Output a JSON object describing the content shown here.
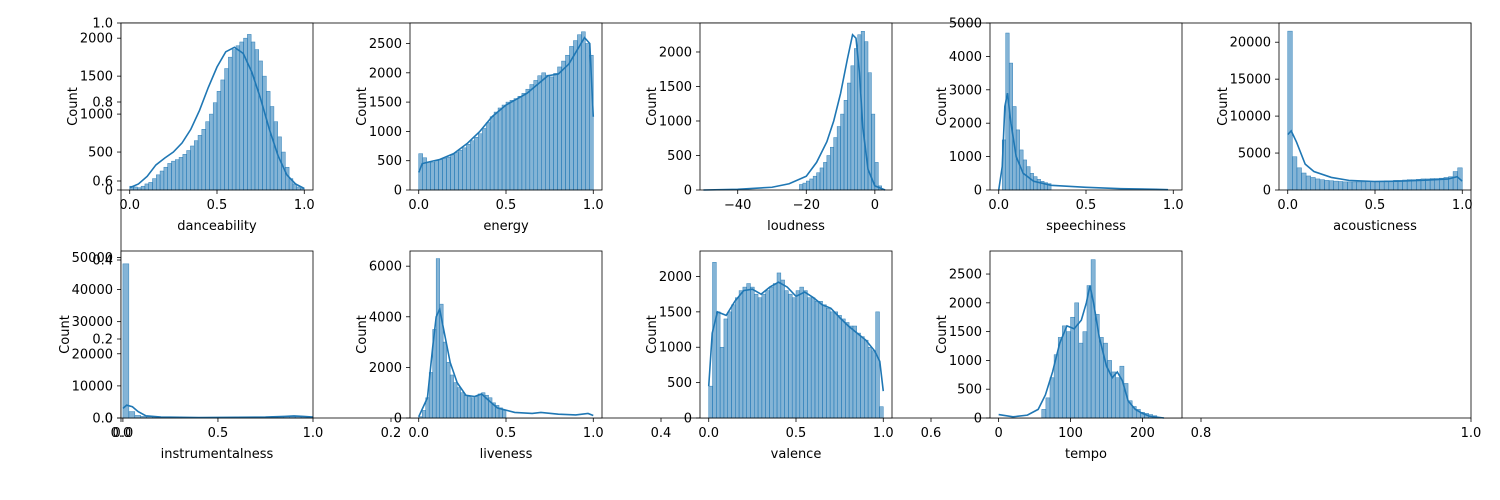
{
  "chart_data": [
    {
      "type": "bar",
      "xlabel": "danceability",
      "ylabel": "Count",
      "xlim": [
        -0.05,
        1.05
      ],
      "ylim": [
        0,
        2200
      ],
      "xticks": [
        "0.0",
        "0.5",
        "1.0"
      ],
      "xtick_values": [
        0.0,
        0.5,
        1.0
      ],
      "yticks": [
        "0",
        "500",
        "1000",
        "1500",
        "2000"
      ],
      "ytick_values": [
        0,
        500,
        1000,
        1500,
        2000
      ],
      "hist": {
        "x_start": 0.0,
        "x_end": 1.0,
        "values": [
          50,
          40,
          30,
          50,
          80,
          100,
          150,
          200,
          250,
          300,
          350,
          380,
          400,
          430,
          470,
          520,
          580,
          650,
          720,
          800,
          900,
          1000,
          1150,
          1300,
          1450,
          1600,
          1750,
          1850,
          1900,
          1950,
          2000,
          2050,
          1950,
          1850,
          1700,
          1500,
          1300,
          1100,
          900,
          700,
          500,
          300,
          150,
          80,
          40,
          20
        ]
      },
      "kde": [
        [
          0.0,
          30
        ],
        [
          0.05,
          80
        ],
        [
          0.1,
          180
        ],
        [
          0.15,
          330
        ],
        [
          0.2,
          420
        ],
        [
          0.25,
          500
        ],
        [
          0.3,
          620
        ],
        [
          0.35,
          800
        ],
        [
          0.4,
          1050
        ],
        [
          0.45,
          1350
        ],
        [
          0.5,
          1620
        ],
        [
          0.55,
          1820
        ],
        [
          0.6,
          1880
        ],
        [
          0.65,
          1800
        ],
        [
          0.7,
          1550
        ],
        [
          0.75,
          1200
        ],
        [
          0.8,
          800
        ],
        [
          0.85,
          450
        ],
        [
          0.9,
          200
        ],
        [
          0.95,
          80
        ],
        [
          1.0,
          20
        ]
      ],
      "series_color": "#1f77b4"
    },
    {
      "type": "bar",
      "xlabel": "energy",
      "ylabel": "Count",
      "xlim": [
        -0.05,
        1.05
      ],
      "ylim": [
        0,
        2850
      ],
      "xticks": [
        "0.0",
        "0.5",
        "1.0"
      ],
      "xtick_values": [
        0.0,
        0.5,
        1.0
      ],
      "yticks": [
        "0",
        "500",
        "1000",
        "1500",
        "2000",
        "2500"
      ],
      "ytick_values": [
        0,
        500,
        1000,
        1500,
        2000,
        2500
      ],
      "hist": {
        "x_start": 0.0,
        "x_end": 1.0,
        "values": [
          620,
          550,
          480,
          470,
          500,
          520,
          540,
          560,
          600,
          640,
          680,
          720,
          780,
          840,
          900,
          960,
          1050,
          1150,
          1250,
          1330,
          1400,
          1450,
          1500,
          1530,
          1560,
          1600,
          1650,
          1720,
          1800,
          1870,
          1950,
          2000,
          1960,
          1930,
          1990,
          2100,
          2200,
          2300,
          2450,
          2550,
          2650,
          2700,
          2500,
          2300
        ]
      },
      "kde": [
        [
          0.0,
          300
        ],
        [
          0.02,
          450
        ],
        [
          0.06,
          480
        ],
        [
          0.12,
          520
        ],
        [
          0.2,
          620
        ],
        [
          0.28,
          800
        ],
        [
          0.35,
          1000
        ],
        [
          0.42,
          1250
        ],
        [
          0.5,
          1450
        ],
        [
          0.56,
          1550
        ],
        [
          0.62,
          1650
        ],
        [
          0.68,
          1800
        ],
        [
          0.74,
          1950
        ],
        [
          0.8,
          1980
        ],
        [
          0.86,
          2150
        ],
        [
          0.9,
          2350
        ],
        [
          0.95,
          2600
        ],
        [
          0.98,
          2500
        ],
        [
          1.0,
          1250
        ]
      ],
      "series_color": "#1f77b4"
    },
    {
      "type": "bar",
      "xlabel": "loudness",
      "ylabel": "Count",
      "xlim": [
        -51,
        5
      ],
      "ylim": [
        0,
        2420
      ],
      "xticks": [
        "−40",
        "−20",
        "0"
      ],
      "xtick_values": [
        -40,
        -20,
        0
      ],
      "yticks": [
        "0",
        "500",
        "1000",
        "1500",
        "2000"
      ],
      "ytick_values": [
        0,
        500,
        1000,
        1500,
        2000
      ],
      "hist": {
        "x_start": -22,
        "x_end": 2,
        "values": [
          80,
          100,
          130,
          160,
          200,
          250,
          320,
          400,
          500,
          620,
          760,
          920,
          1100,
          1300,
          1550,
          1800,
          2050,
          2250,
          2300,
          2150,
          1700,
          1100,
          400,
          60
        ]
      },
      "kde": [
        [
          -50,
          0
        ],
        [
          -40,
          10
        ],
        [
          -30,
          40
        ],
        [
          -25,
          90
        ],
        [
          -20,
          200
        ],
        [
          -17,
          400
        ],
        [
          -14,
          700
        ],
        [
          -12,
          1000
        ],
        [
          -10,
          1400
        ],
        [
          -8,
          1900
        ],
        [
          -6.5,
          2250
        ],
        [
          -5.5,
          2200
        ],
        [
          -4.5,
          1700
        ],
        [
          -3.5,
          900
        ],
        [
          -2,
          300
        ],
        [
          0,
          60
        ],
        [
          3,
          0
        ]
      ],
      "series_color": "#1f77b4"
    },
    {
      "type": "bar",
      "xlabel": "speechiness",
      "ylabel": "Count",
      "xlim": [
        -0.05,
        1.05
      ],
      "ylim": [
        0,
        5000
      ],
      "xticks": [
        "0.0",
        "0.5",
        "1.0"
      ],
      "xtick_values": [
        0.0,
        0.5,
        1.0
      ],
      "yticks": [
        "0",
        "1000",
        "2000",
        "3000",
        "4000",
        "5000"
      ],
      "ytick_values": [
        0,
        1000,
        2000,
        3000,
        4000,
        5000
      ],
      "hist": {
        "x_start": 0.02,
        "x_end": 0.3,
        "values": [
          1500,
          4700,
          3800,
          2500,
          1800,
          1200,
          900,
          700,
          500,
          400,
          320,
          260,
          220,
          190
        ]
      },
      "kde": [
        [
          0.0,
          0
        ],
        [
          0.02,
          700
        ],
        [
          0.035,
          2500
        ],
        [
          0.05,
          2900
        ],
        [
          0.07,
          2000
        ],
        [
          0.1,
          1000
        ],
        [
          0.14,
          500
        ],
        [
          0.2,
          260
        ],
        [
          0.3,
          140
        ],
        [
          0.5,
          80
        ],
        [
          0.7,
          40
        ],
        [
          0.9,
          20
        ],
        [
          0.97,
          10
        ]
      ],
      "series_color": "#1f77b4"
    },
    {
      "type": "bar",
      "xlabel": "acousticness",
      "ylabel": "Count",
      "xlim": [
        -0.05,
        1.05
      ],
      "ylim": [
        0,
        22600
      ],
      "xticks": [
        "0.0",
        "0.5",
        "1.0"
      ],
      "xtick_values": [
        0.0,
        0.5,
        1.0
      ],
      "yticks": [
        "0",
        "5000",
        "10000",
        "15000",
        "20000"
      ],
      "ytick_values": [
        0,
        5000,
        10000,
        15000,
        20000
      ],
      "hist": {
        "x_start": 0.0,
        "x_end": 1.0,
        "values": [
          21500,
          4500,
          3000,
          2300,
          1900,
          1700,
          1500,
          1400,
          1300,
          1250,
          1200,
          1150,
          1100,
          1100,
          1100,
          1100,
          1100,
          1150,
          1150,
          1200,
          1200,
          1250,
          1250,
          1300,
          1300,
          1350,
          1400,
          1400,
          1450,
          1500,
          1500,
          1550,
          1550,
          1600,
          1700,
          1800,
          2500,
          3000
        ]
      },
      "kde": [
        [
          0.0,
          7500
        ],
        [
          0.02,
          8000
        ],
        [
          0.05,
          6500
        ],
        [
          0.1,
          3500
        ],
        [
          0.15,
          2500
        ],
        [
          0.25,
          1700
        ],
        [
          0.35,
          1300
        ],
        [
          0.5,
          1150
        ],
        [
          0.65,
          1200
        ],
        [
          0.8,
          1350
        ],
        [
          0.92,
          1500
        ],
        [
          0.97,
          1800
        ],
        [
          1.0,
          1200
        ]
      ],
      "series_color": "#1f77b4"
    },
    {
      "type": "bar",
      "xlabel": "instrumentalness",
      "ylabel": "Count",
      "xlim": [
        -0.01,
        1.0
      ],
      "ylim": [
        0,
        52000
      ],
      "xticks": [
        "0.0",
        "0.5",
        "1.0"
      ],
      "xtick_values": [
        0.0,
        0.5,
        1.0
      ],
      "yticks": [
        "0",
        "10000",
        "20000",
        "30000",
        "40000",
        "50000"
      ],
      "ytick_values": [
        0,
        10000,
        20000,
        30000,
        40000,
        50000
      ],
      "hist": {
        "x_start": 0.0,
        "x_end": 1.0,
        "values": [
          48000,
          2000,
          800,
          500,
          400,
          350,
          300,
          280,
          260,
          250,
          240,
          230,
          220,
          220,
          220,
          230,
          230,
          240,
          250,
          260,
          280,
          300,
          320,
          350,
          380,
          420,
          460,
          500,
          520,
          480,
          400,
          300
        ]
      },
      "kde": [
        [
          0.0,
          3000
        ],
        [
          0.02,
          4000
        ],
        [
          0.05,
          3500
        ],
        [
          0.08,
          2000
        ],
        [
          0.12,
          700
        ],
        [
          0.2,
          300
        ],
        [
          0.4,
          150
        ],
        [
          0.6,
          200
        ],
        [
          0.75,
          300
        ],
        [
          0.85,
          500
        ],
        [
          0.9,
          650
        ],
        [
          0.95,
          500
        ],
        [
          1.0,
          300
        ]
      ],
      "series_color": "#1f77b4"
    },
    {
      "type": "bar",
      "xlabel": "liveness",
      "ylabel": "Count",
      "xlim": [
        -0.05,
        1.05
      ],
      "ylim": [
        0,
        6600
      ],
      "xticks": [
        "0.0",
        "0.5",
        "1.0"
      ],
      "xtick_values": [
        0.0,
        0.5,
        1.0
      ],
      "yticks": [
        "0",
        "2000",
        "4000",
        "6000"
      ],
      "ytick_values": [
        0,
        2000,
        4000,
        6000
      ],
      "hist": {
        "x_start": 0.0,
        "x_end": 0.5,
        "values": [
          50,
          300,
          800,
          1800,
          3500,
          6300,
          4500,
          3000,
          2200,
          1700,
          1400,
          1200,
          1000,
          900,
          850,
          800,
          850,
          950,
          1000,
          900,
          800,
          600,
          500,
          400,
          300
        ]
      },
      "kde": [
        [
          0.0,
          50
        ],
        [
          0.05,
          800
        ],
        [
          0.08,
          2800
        ],
        [
          0.1,
          4000
        ],
        [
          0.12,
          4300
        ],
        [
          0.14,
          3600
        ],
        [
          0.18,
          2200
        ],
        [
          0.22,
          1400
        ],
        [
          0.27,
          900
        ],
        [
          0.32,
          850
        ],
        [
          0.36,
          950
        ],
        [
          0.4,
          700
        ],
        [
          0.45,
          400
        ],
        [
          0.55,
          220
        ],
        [
          0.65,
          180
        ],
        [
          0.7,
          220
        ],
        [
          0.8,
          150
        ],
        [
          0.9,
          120
        ],
        [
          0.97,
          180
        ],
        [
          1.0,
          100
        ]
      ],
      "series_color": "#1f77b4"
    },
    {
      "type": "bar",
      "xlabel": "valence",
      "ylabel": "Count",
      "xlim": [
        -0.05,
        1.05
      ],
      "ylim": [
        0,
        2360
      ],
      "xticks": [
        "0.0",
        "0.5",
        "1.0"
      ],
      "xtick_values": [
        0.0,
        0.5,
        1.0
      ],
      "yticks": [
        "0",
        "500",
        "1000",
        "1500",
        "2000"
      ],
      "ytick_values": [
        0,
        500,
        1000,
        1500,
        2000
      ],
      "hist": {
        "x_start": 0.0,
        "x_end": 1.0,
        "values": [
          450,
          2200,
          1500,
          1000,
          1400,
          1500,
          1600,
          1700,
          1800,
          1850,
          1900,
          1850,
          1750,
          1700,
          1750,
          1800,
          1850,
          1900,
          2050,
          1950,
          1800,
          1750,
          1700,
          1800,
          1850,
          1800,
          1700,
          1700,
          1650,
          1650,
          1600,
          1550,
          1500,
          1500,
          1450,
          1400,
          1350,
          1300,
          1300,
          1200,
          1150,
          1100,
          1000,
          950,
          1500,
          160
        ]
      },
      "kde": [
        [
          0.0,
          450
        ],
        [
          0.02,
          1200
        ],
        [
          0.05,
          1500
        ],
        [
          0.1,
          1450
        ],
        [
          0.15,
          1650
        ],
        [
          0.2,
          1800
        ],
        [
          0.25,
          1820
        ],
        [
          0.3,
          1750
        ],
        [
          0.35,
          1850
        ],
        [
          0.4,
          1920
        ],
        [
          0.45,
          1850
        ],
        [
          0.5,
          1720
        ],
        [
          0.55,
          1780
        ],
        [
          0.6,
          1700
        ],
        [
          0.65,
          1600
        ],
        [
          0.7,
          1550
        ],
        [
          0.75,
          1420
        ],
        [
          0.8,
          1300
        ],
        [
          0.85,
          1200
        ],
        [
          0.9,
          1100
        ],
        [
          0.95,
          950
        ],
        [
          0.98,
          800
        ],
        [
          1.0,
          380
        ]
      ],
      "series_color": "#1f77b4"
    },
    {
      "type": "bar",
      "xlabel": "tempo",
      "ylabel": "Count",
      "xlim": [
        -12,
        255
      ],
      "ylim": [
        0,
        2900
      ],
      "xticks": [
        "0",
        "100",
        "200"
      ],
      "xtick_values": [
        0,
        100,
        200
      ],
      "yticks": [
        "0",
        "500",
        "1000",
        "1500",
        "2000",
        "2500"
      ],
      "ytick_values": [
        0,
        500,
        1000,
        1500,
        2000,
        2500
      ],
      "hist": {
        "x_start": 60,
        "x_end": 220,
        "values": [
          150,
          350,
          700,
          1100,
          1400,
          1600,
          1500,
          1750,
          2000,
          1300,
          1500,
          2300,
          2750,
          1800,
          1400,
          1300,
          1000,
          800,
          700,
          900,
          600,
          300,
          200,
          150,
          100,
          80,
          60,
          40
        ]
      },
      "kde": [
        [
          0,
          60
        ],
        [
          20,
          20
        ],
        [
          40,
          50
        ],
        [
          55,
          150
        ],
        [
          65,
          400
        ],
        [
          75,
          800
        ],
        [
          85,
          1300
        ],
        [
          95,
          1600
        ],
        [
          105,
          1550
        ],
        [
          115,
          1700
        ],
        [
          122,
          2000
        ],
        [
          127,
          2300
        ],
        [
          132,
          2000
        ],
        [
          140,
          1400
        ],
        [
          150,
          900
        ],
        [
          158,
          700
        ],
        [
          165,
          800
        ],
        [
          172,
          650
        ],
        [
          180,
          300
        ],
        [
          190,
          150
        ],
        [
          200,
          80
        ],
        [
          210,
          30
        ],
        [
          230,
          0
        ]
      ],
      "series_color": "#1f77b4"
    }
  ],
  "background_axis": {
    "xticks": [
      "0.0",
      "0.2",
      "0.4",
      "0.6",
      "0.8",
      "1.0"
    ],
    "xtick_values": [
      0.0,
      0.2,
      0.4,
      0.6,
      0.8,
      1.0
    ],
    "yticks": [
      "0.0",
      "0.2",
      "0.4",
      "0.6",
      "0.8",
      "1.0"
    ],
    "ytick_values": [
      0.0,
      0.2,
      0.4,
      0.6,
      0.8,
      1.0
    ]
  }
}
